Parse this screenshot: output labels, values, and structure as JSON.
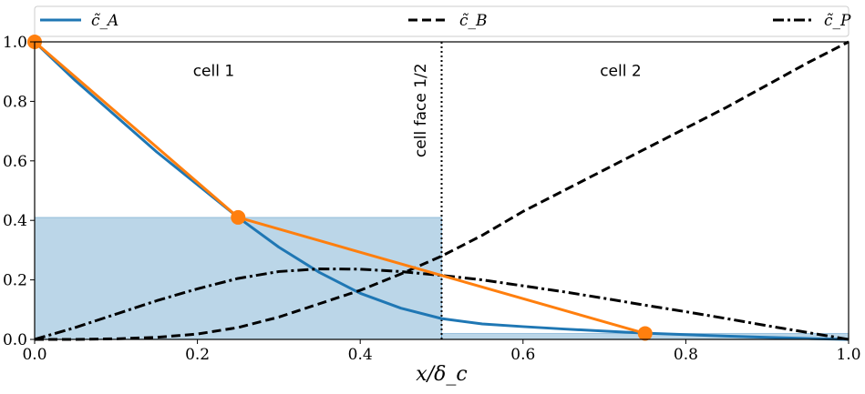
{
  "chart_data": {
    "type": "line",
    "xlabel": "x/δ_c",
    "ylabel": "",
    "xlim": [
      0,
      1
    ],
    "ylim": [
      0,
      1
    ],
    "xticks": [
      "0.0",
      "0.2",
      "0.4",
      "0.6",
      "0.8",
      "1.0"
    ],
    "yticks": [
      "0.0",
      "0.2",
      "0.4",
      "0.6",
      "0.8",
      "1.0"
    ],
    "grid": false,
    "legend": {
      "placement": "top, outside plot",
      "entries": [
        {
          "label": "c̃_A",
          "style": "solid",
          "color": "#1f77b4"
        },
        {
          "label": "c̃_B",
          "style": "dashed",
          "color": "#000000"
        },
        {
          "label": "c̃_P",
          "style": "dash-dot",
          "color": "#000000"
        }
      ]
    },
    "series": [
      {
        "name": "c̃_A",
        "color": "#1f77b4",
        "style": "solid",
        "x": [
          0.0,
          0.05,
          0.1,
          0.15,
          0.2,
          0.25,
          0.3,
          0.35,
          0.4,
          0.45,
          0.5,
          0.55,
          0.6,
          0.65,
          0.7,
          0.75,
          0.8,
          0.85,
          0.9,
          0.95,
          1.0
        ],
        "y": [
          1.0,
          0.87,
          0.75,
          0.63,
          0.52,
          0.41,
          0.31,
          0.225,
          0.155,
          0.105,
          0.07,
          0.052,
          0.043,
          0.035,
          0.028,
          0.021,
          0.016,
          0.011,
          0.007,
          0.003,
          0.0
        ]
      },
      {
        "name": "c̃_B",
        "color": "#000000",
        "style": "dashed",
        "x": [
          0.0,
          0.05,
          0.1,
          0.15,
          0.2,
          0.25,
          0.3,
          0.35,
          0.4,
          0.45,
          0.5,
          0.55,
          0.6,
          0.65,
          0.7,
          0.75,
          0.8,
          0.85,
          0.9,
          0.95,
          1.0
        ],
        "y": [
          0.0,
          0.0,
          0.002,
          0.007,
          0.018,
          0.04,
          0.075,
          0.12,
          0.165,
          0.22,
          0.28,
          0.35,
          0.43,
          0.5,
          0.57,
          0.64,
          0.71,
          0.78,
          0.855,
          0.93,
          1.0
        ]
      },
      {
        "name": "c̃_P",
        "color": "#000000",
        "style": "dash-dot",
        "x": [
          0.0,
          0.05,
          0.1,
          0.15,
          0.2,
          0.25,
          0.3,
          0.35,
          0.4,
          0.45,
          0.5,
          0.55,
          0.6,
          0.65,
          0.7,
          0.75,
          0.8,
          0.85,
          0.9,
          0.95,
          1.0
        ],
        "y": [
          0.0,
          0.04,
          0.085,
          0.13,
          0.17,
          0.205,
          0.228,
          0.237,
          0.236,
          0.228,
          0.215,
          0.2,
          0.18,
          0.16,
          0.138,
          0.115,
          0.093,
          0.07,
          0.046,
          0.023,
          0.0
        ]
      },
      {
        "color": "#ff7f0e",
        "style": "solid-with-markers",
        "x": [
          0.0,
          0.25,
          0.75
        ],
        "y": [
          1.0,
          0.41,
          0.02
        ],
        "markers_at": [
          0.0,
          0.25,
          0.75
        ]
      }
    ],
    "shaded_cells": [
      {
        "x0": 0.0,
        "x1": 0.5,
        "value": 0.41,
        "color": "#1f77b4",
        "alpha": 0.3
      },
      {
        "x0": 0.5,
        "x1": 1.0,
        "value": 0.02,
        "color": "#1f77b4",
        "alpha": 0.3
      }
    ],
    "vertical_line": {
      "x": 0.5,
      "style": "dotted",
      "color": "#000000"
    },
    "annotations": [
      {
        "text": "cell 1",
        "x": 0.22,
        "y": 0.9
      },
      {
        "text": "cell 2",
        "x": 0.72,
        "y": 0.9
      },
      {
        "text": "cell face 1/2",
        "x": 0.475,
        "y": 0.77,
        "rotation": -90
      }
    ]
  }
}
